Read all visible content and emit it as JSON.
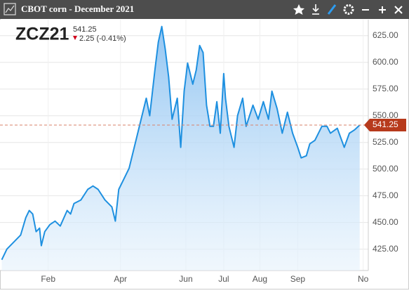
{
  "chart_data": {
    "type": "area",
    "title": "CBOT corn - December 2021",
    "symbol": "ZCZ21",
    "change": "2.25 (-0.41%)",
    "color": "#1e90e0",
    "grid": true,
    "x": [
      0,
      3,
      7,
      11,
      14,
      16,
      18,
      20,
      22,
      23,
      25,
      28,
      31,
      34,
      38,
      40,
      42,
      46,
      50,
      53,
      56,
      60,
      64,
      66,
      68,
      71,
      74,
      78,
      82,
      84,
      86,
      89,
      91,
      93,
      95,
      97,
      99,
      102,
      104,
      106,
      108,
      111,
      113,
      115,
      117,
      119,
      121,
      123,
      125,
      127,
      129,
      130,
      132,
      135,
      137,
      140,
      142,
      146,
      149,
      152,
      155,
      157,
      160,
      163,
      166,
      169,
      172,
      174,
      177,
      179,
      182,
      186,
      189,
      191,
      195,
      199,
      202,
      205,
      208
    ],
    "values": [
      415.1,
      425,
      431.6,
      438.2,
      454.6,
      461.2,
      457.9,
      441.4,
      444.7,
      428.3,
      441.4,
      448,
      451.3,
      446.7,
      461.2,
      457.9,
      467.8,
      471.1,
      481,
      484.2,
      481,
      471.1,
      464.5,
      451.3,
      481,
      490.8,
      500.7,
      527,
      553.3,
      566.4,
      550,
      592.8,
      619.1,
      633.6,
      612.5,
      586.2,
      546.7,
      566.4,
      520.4,
      573,
      599.3,
      579.6,
      592.8,
      615.8,
      609.2,
      559.9,
      540.1,
      540.1,
      563.2,
      533.6,
      589.5,
      566.4,
      540.1,
      520.4,
      550,
      566.4,
      540.1,
      559.9,
      546.7,
      563.2,
      546.7,
      573,
      556.6,
      533.6,
      553.3,
      533.6,
      520.4,
      510.5,
      512.5,
      523.7,
      527,
      540.1,
      540.1,
      533.6,
      538.2,
      520.4,
      533.6,
      536.8,
      541.25
    ],
    "xlim": [
      -1,
      213
    ],
    "xticks": [
      {
        "value": 27,
        "label": "Feb"
      },
      {
        "value": 69,
        "label": "Apr"
      },
      {
        "value": 107,
        "label": "Jun"
      },
      {
        "value": 129,
        "label": "Jul"
      },
      {
        "value": 150,
        "label": "Aug"
      },
      {
        "value": 172,
        "label": "Sep"
      },
      {
        "value": 210,
        "label": "No"
      }
    ],
    "ylim": [
      405,
      640
    ],
    "yticks": [
      {
        "value": 425,
        "label": "425.00"
      },
      {
        "value": 450,
        "label": "450.00"
      },
      {
        "value": 475,
        "label": "475.00"
      },
      {
        "value": 500,
        "label": "500.00"
      },
      {
        "value": 525,
        "label": "525.00"
      },
      {
        "value": 550,
        "label": "550.00"
      },
      {
        "value": 575,
        "label": "575.00"
      },
      {
        "value": 600,
        "label": "600.00"
      },
      {
        "value": 625,
        "label": "625.00"
      }
    ]
  }
}
